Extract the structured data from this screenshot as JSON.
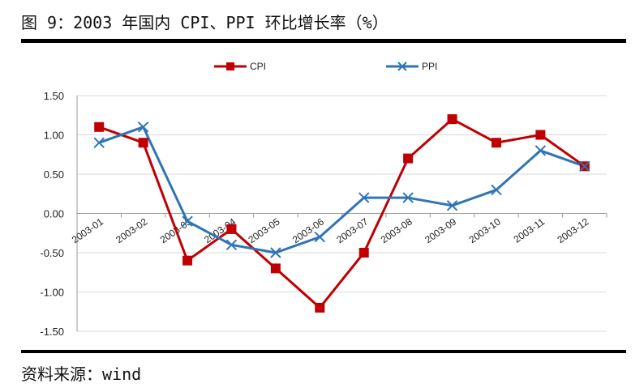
{
  "header": {
    "title": "图 9：2003 年国内 CPI、PPI 环比增长率（%）"
  },
  "footer": {
    "source": "资料来源：wind"
  },
  "chart_data": {
    "type": "line",
    "title": "",
    "xlabel": "",
    "ylabel": "",
    "categories": [
      "2003-01",
      "2003-02",
      "2003-03",
      "2003-04",
      "2003-05",
      "2003-06",
      "2003-07",
      "2003-08",
      "2003-09",
      "2003-10",
      "2003-11",
      "2003-12"
    ],
    "ylim": [
      -1.5,
      1.5
    ],
    "yticks": [
      "1.50",
      "1.00",
      "0.50",
      "0.00",
      "-0.50",
      "-1.00",
      "-1.50"
    ],
    "grid": true,
    "legend_position": "top-center",
    "series": [
      {
        "name": "CPI",
        "color": "#c00000",
        "marker": "square",
        "values": [
          1.1,
          0.9,
          -0.6,
          -0.2,
          -0.7,
          -1.2,
          -0.5,
          0.7,
          1.2,
          0.9,
          1.0,
          0.6
        ]
      },
      {
        "name": "PPI",
        "color": "#2e75b6",
        "marker": "x",
        "values": [
          0.9,
          1.1,
          -0.1,
          -0.4,
          -0.5,
          -0.3,
          0.2,
          0.2,
          0.1,
          0.3,
          0.8,
          0.6
        ]
      }
    ]
  }
}
